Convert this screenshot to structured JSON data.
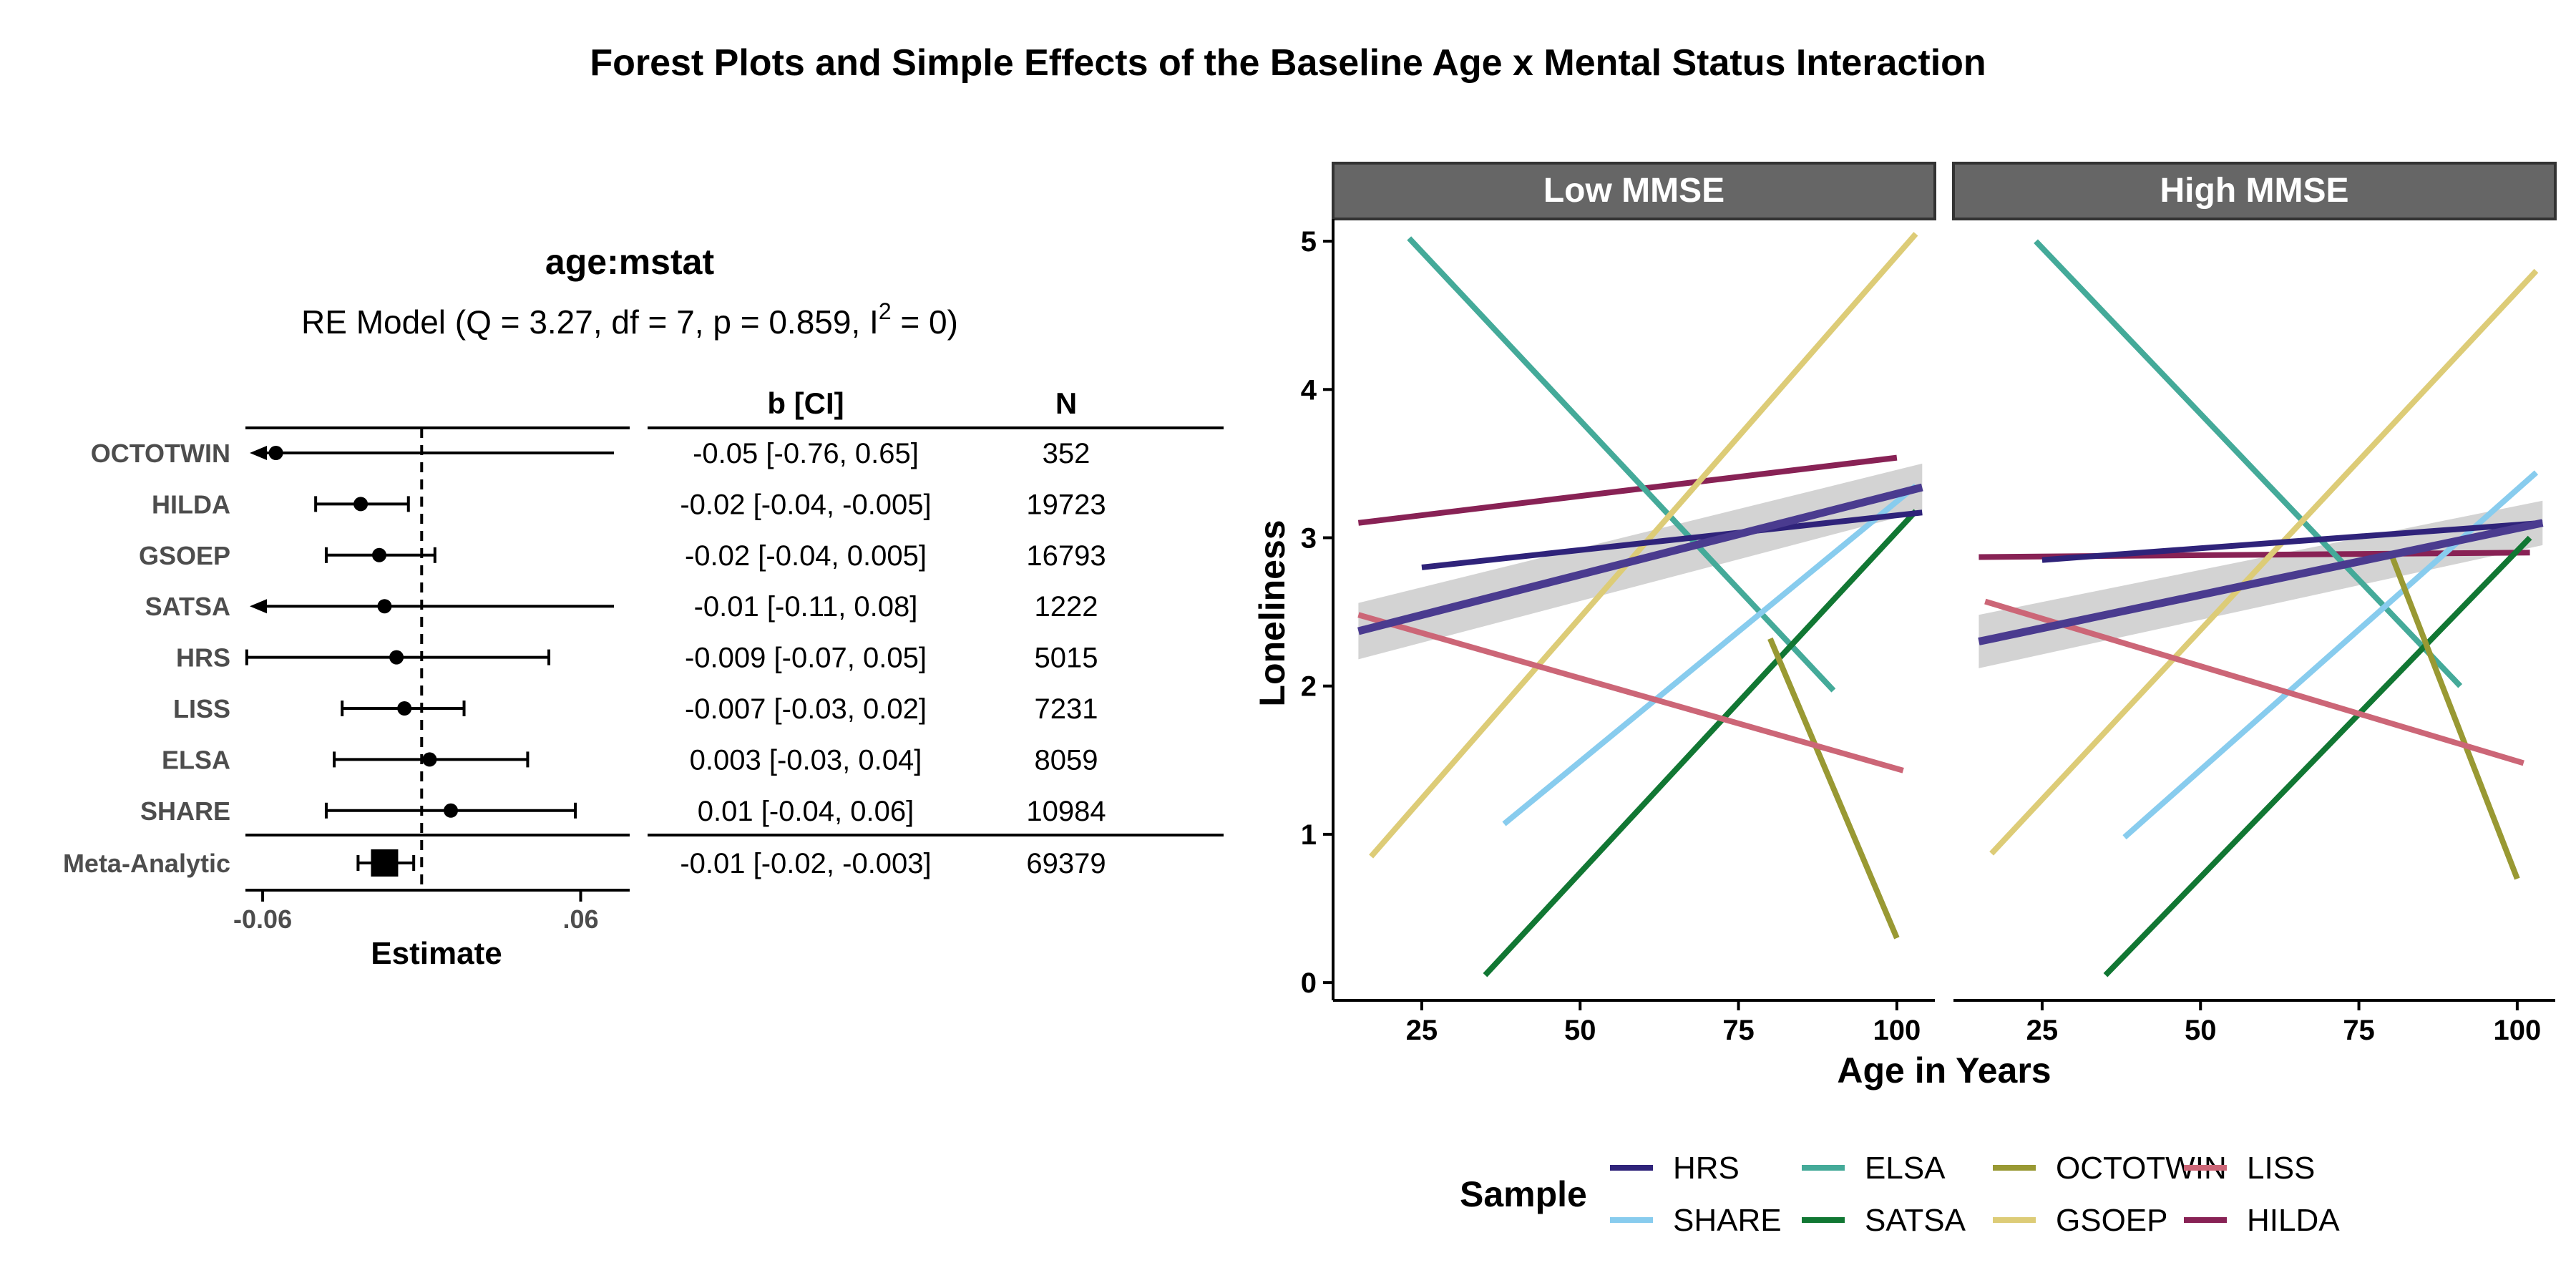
{
  "title": "Forest Plots and Simple Effects of the Baseline Age x Mental Status Interaction",
  "chart_data": [
    {
      "type": "forest",
      "title": "age:mstat",
      "subtitle": {
        "prefix": "RE Model (Q = 3.27, df = 7, p = 0.859, I",
        "sup": "2",
        "suffix": " = 0)"
      },
      "xlabel": "Estimate",
      "x_ticks": [
        {
          "value": -0.06,
          "label": "-0.06"
        },
        {
          "value": 0.06,
          "label": ".06"
        }
      ],
      "xlim": [
        -0.0665,
        0.0785
      ],
      "reference_line": 0,
      "col_headers": {
        "ci": "b [CI]",
        "n": "N"
      },
      "rows": [
        {
          "label": "OCTOTWIN",
          "estimate": -0.055,
          "lo": -0.76,
          "hi": 0.65,
          "lo_clipped": true,
          "hi_clipped": true,
          "ci_text": "-0.05 [-0.76, 0.65]",
          "n": "352"
        },
        {
          "label": "HILDA",
          "estimate": -0.023,
          "lo": -0.04,
          "hi": -0.005,
          "ci_text": "-0.02 [-0.04, -0.005]",
          "n": "19723"
        },
        {
          "label": "GSOEP",
          "estimate": -0.016,
          "lo": -0.036,
          "hi": 0.005,
          "ci_text": "-0.02 [-0.04, 0.005]",
          "n": "16793"
        },
        {
          "label": "SATSA",
          "estimate": -0.014,
          "lo": -0.11,
          "hi": 0.08,
          "lo_clipped": true,
          "hi_clipped": true,
          "ci_text": "-0.01 [-0.11, 0.08]",
          "n": "1222"
        },
        {
          "label": "HRS",
          "estimate": -0.0095,
          "lo": -0.066,
          "hi": 0.048,
          "ci_text": "-0.009 [-0.07, 0.05]",
          "n": "5015"
        },
        {
          "label": "LISS",
          "estimate": -0.0065,
          "lo": -0.03,
          "hi": 0.016,
          "ci_text": "-0.007 [-0.03, 0.02]",
          "n": "7231"
        },
        {
          "label": "ELSA",
          "estimate": 0.003,
          "lo": -0.033,
          "hi": 0.04,
          "ci_text": "0.003 [-0.03, 0.04]",
          "n": "8059"
        },
        {
          "label": "SHARE",
          "estimate": 0.011,
          "lo": -0.036,
          "hi": 0.058,
          "ci_text": "0.01 [-0.04, 0.06]",
          "n": "10984"
        }
      ],
      "summary": {
        "label": "Meta-Analytic",
        "estimate": -0.014,
        "lo": -0.024,
        "hi": -0.003,
        "ci_text": "-0.01 [-0.02, -0.003]",
        "n": "69379"
      }
    },
    {
      "type": "line",
      "xlabel": "Age in Years",
      "ylabel": "Loneliness",
      "xlim": [
        11,
        106
      ],
      "ylim": [
        -0.12,
        5.15
      ],
      "x_ticks": [
        25,
        50,
        75,
        100
      ],
      "y_ticks": [
        0,
        1,
        2,
        3,
        4,
        5
      ],
      "legend": {
        "title": "Sample",
        "position": "bottom",
        "entries": [
          {
            "name": "HRS",
            "color": "#2f237a"
          },
          {
            "name": "SHARE",
            "color": "#88ccee"
          },
          {
            "name": "ELSA",
            "color": "#44aa99"
          },
          {
            "name": "SATSA",
            "color": "#117733"
          },
          {
            "name": "OCTOTWIN",
            "color": "#999933"
          },
          {
            "name": "GSOEP",
            "color": "#ddcc77"
          },
          {
            "name": "LISS",
            "color": "#cc6677"
          },
          {
            "name": "HILDA",
            "color": "#882255"
          }
        ]
      },
      "pooled": {
        "color": "#4a3b8f",
        "band_color": "#c8c8c8"
      },
      "panels": [
        {
          "strip": "Low MMSE",
          "series": [
            {
              "name": "HILDA",
              "x": [
                15,
                100
              ],
              "y": [
                3.1,
                3.54
              ]
            },
            {
              "name": "ELSA",
              "x": [
                23,
                90
              ],
              "y": [
                5.02,
                1.97
              ]
            },
            {
              "name": "GSOEP",
              "x": [
                17,
                103
              ],
              "y": [
                0.85,
                5.05
              ]
            },
            {
              "name": "SHARE",
              "x": [
                38,
                103
              ],
              "y": [
                1.07,
                3.35
              ]
            },
            {
              "name": "SATSA",
              "x": [
                35,
                103
              ],
              "y": [
                0.05,
                3.18
              ]
            },
            {
              "name": "OCTOTWIN",
              "x": [
                80,
                100
              ],
              "y": [
                2.32,
                0.3
              ]
            },
            {
              "name": "LISS",
              "x": [
                15,
                101
              ],
              "y": [
                2.48,
                1.43
              ]
            },
            {
              "name": "HRS",
              "x": [
                25,
                104
              ],
              "y": [
                2.8,
                3.17
              ]
            }
          ],
          "pooled": {
            "x": [
              15,
              104
            ],
            "y": [
              2.37,
              3.34
            ],
            "band_lo": [
              2.18,
              3.18
            ],
            "band_hi": [
              2.56,
              3.5
            ]
          }
        },
        {
          "strip": "High MMSE",
          "series": [
            {
              "name": "HILDA",
              "x": [
                15,
                102
              ],
              "y": [
                2.87,
                2.9
              ]
            },
            {
              "name": "ELSA",
              "x": [
                24,
                91
              ],
              "y": [
                5.0,
                2.0
              ]
            },
            {
              "name": "GSOEP",
              "x": [
                17,
                103
              ],
              "y": [
                0.87,
                4.8
              ]
            },
            {
              "name": "SHARE",
              "x": [
                38,
                103
              ],
              "y": [
                0.98,
                3.44
              ]
            },
            {
              "name": "SATSA",
              "x": [
                35,
                102
              ],
              "y": [
                0.05,
                3.0
              ]
            },
            {
              "name": "OCTOTWIN",
              "x": [
                80,
                100
              ],
              "y": [
                2.9,
                0.7
              ]
            },
            {
              "name": "LISS",
              "x": [
                16,
                101
              ],
              "y": [
                2.57,
                1.48
              ]
            },
            {
              "name": "HRS",
              "x": [
                25,
                104
              ],
              "y": [
                2.85,
                3.1
              ]
            }
          ],
          "pooled": {
            "x": [
              15,
              104
            ],
            "y": [
              2.3,
              3.1
            ],
            "band_lo": [
              2.12,
              2.95
            ],
            "band_hi": [
              2.48,
              3.25
            ]
          }
        }
      ]
    }
  ]
}
